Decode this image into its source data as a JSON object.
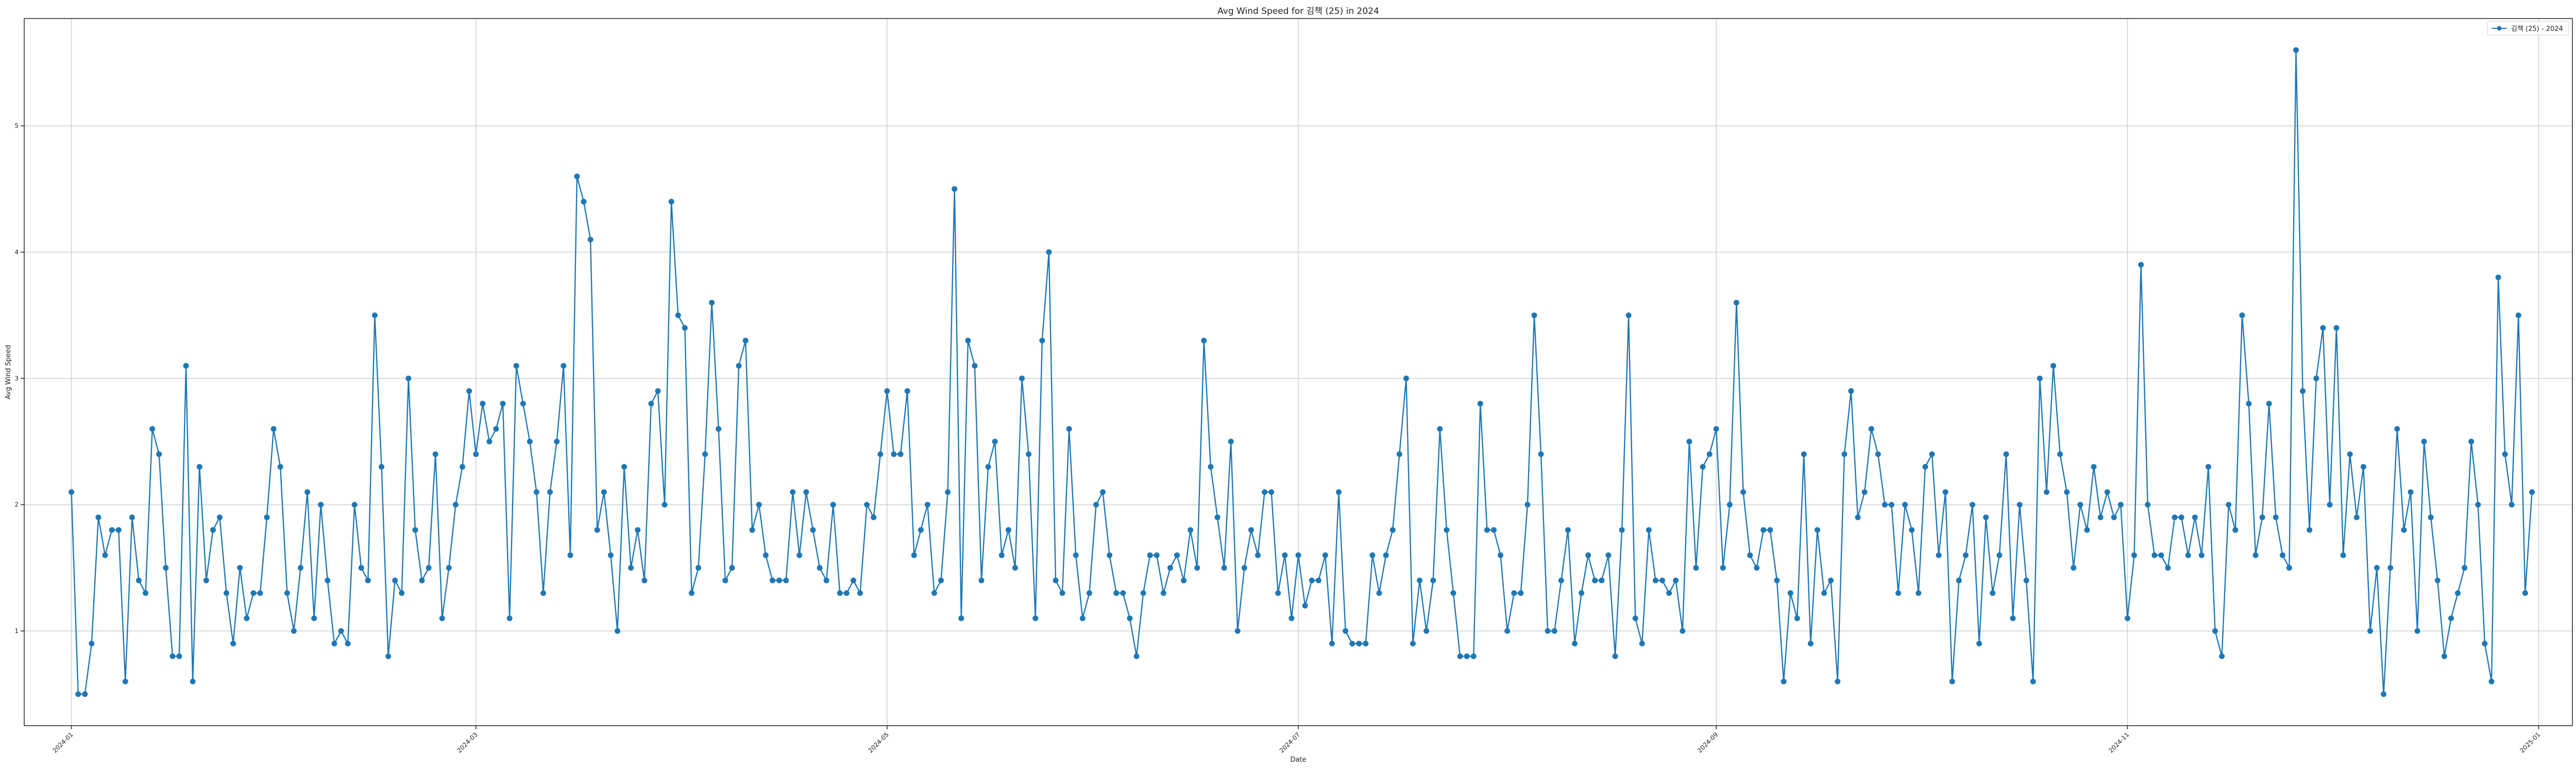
{
  "chart_data": {
    "type": "line",
    "title": "Avg Wind Speed for 김책 (25) in 2024",
    "xlabel": "Date",
    "ylabel": "Avg Wind Speed",
    "grid": true,
    "legend_position": "top-right",
    "color": "#1f77b4",
    "xlim": [
      "2023-12-25",
      "2025-01-06"
    ],
    "ylim": [
      0.25,
      5.85
    ],
    "x_ticks": [
      "2024-01",
      "2024-03",
      "2024-05",
      "2024-07",
      "2024-09",
      "2024-11",
      "2025-01"
    ],
    "y_ticks": [
      1,
      2,
      3,
      4,
      5
    ],
    "series": [
      {
        "name": "김책 (25) - 2024",
        "start_date": "2024-01-01",
        "step_days": 1,
        "values": [
          2.1,
          0.5,
          0.5,
          0.9,
          1.9,
          1.6,
          1.8,
          1.8,
          0.6,
          1.9,
          1.4,
          1.3,
          2.6,
          2.4,
          1.5,
          0.8,
          0.8,
          3.1,
          0.6,
          2.3,
          1.4,
          1.8,
          1.9,
          1.3,
          0.9,
          1.5,
          1.1,
          1.3,
          1.3,
          1.9,
          2.6,
          2.3,
          1.3,
          1.0,
          1.5,
          2.1,
          1.1,
          2.0,
          1.4,
          0.9,
          1.0,
          0.9,
          2.0,
          1.5,
          1.4,
          3.5,
          2.3,
          0.8,
          1.4,
          1.3,
          3.0,
          1.8,
          1.4,
          1.5,
          2.4,
          1.1,
          1.5,
          2.0,
          2.3,
          2.9,
          2.4,
          2.8,
          2.5,
          2.6,
          2.8,
          1.1,
          3.1,
          2.8,
          2.5,
          2.1,
          1.3,
          2.1,
          2.5,
          3.1,
          1.6,
          4.6,
          4.4,
          4.1,
          1.8,
          2.1,
          1.6,
          1.0,
          2.3,
          1.5,
          1.8,
          1.4,
          2.8,
          2.9,
          2.0,
          4.4,
          3.5,
          3.4,
          1.3,
          1.5,
          2.4,
          3.6,
          2.6,
          1.4,
          1.5,
          3.1,
          3.3,
          1.8,
          2.0,
          1.6,
          1.4,
          1.4,
          1.4,
          2.1,
          1.6,
          2.1,
          1.8,
          1.5,
          1.4,
          2.0,
          1.3,
          1.3,
          1.4,
          1.3,
          2.0,
          1.9,
          2.4,
          2.9,
          2.4,
          2.4,
          2.9,
          1.6,
          1.8,
          2.0,
          1.3,
          1.4,
          2.1,
          4.5,
          1.1,
          3.3,
          3.1,
          1.4,
          2.3,
          2.5,
          1.6,
          1.8,
          1.5,
          3.0,
          2.4,
          1.1,
          3.3,
          4.0,
          1.4,
          1.3,
          2.6,
          1.6,
          1.1,
          1.3,
          2.0,
          2.1,
          1.6,
          1.3,
          1.3,
          1.1,
          0.8,
          1.3,
          1.6,
          1.6,
          1.3,
          1.5,
          1.6,
          1.4,
          1.8,
          1.5,
          3.3,
          2.3,
          1.9,
          1.5,
          2.5,
          1.0,
          1.5,
          1.8,
          1.6,
          2.1,
          2.1,
          1.3,
          1.6,
          1.1,
          1.6,
          1.2,
          1.4,
          1.4,
          1.6,
          0.9,
          2.1,
          1.0,
          0.9,
          0.9,
          0.9,
          1.6,
          1.3,
          1.6,
          1.8,
          2.4,
          3.0,
          0.9,
          1.4,
          1.0,
          1.4,
          2.6,
          1.8,
          1.3,
          0.8,
          0.8,
          0.8,
          2.8,
          1.8,
          1.8,
          1.6,
          1.0,
          1.3,
          1.3,
          2.0,
          3.5,
          2.4,
          1.0,
          1.0,
          1.4,
          1.8,
          0.9,
          1.3,
          1.6,
          1.4,
          1.4,
          1.6,
          0.8,
          1.8,
          3.5,
          1.1,
          0.9,
          1.8,
          1.4,
          1.4,
          1.3,
          1.4,
          1.0,
          2.5,
          1.5,
          2.3,
          2.4,
          2.6,
          1.5,
          2.0,
          3.6,
          2.1,
          1.6,
          1.5,
          1.8,
          1.8,
          1.4,
          0.6,
          1.3,
          1.1,
          2.4,
          0.9,
          1.8,
          1.3,
          1.4,
          0.6,
          2.4,
          2.9,
          1.9,
          2.1,
          2.6,
          2.4,
          2.0,
          2.0,
          1.3,
          2.0,
          1.8,
          1.3,
          2.3,
          2.4,
          1.6,
          2.1,
          0.6,
          1.4,
          1.6,
          2.0,
          0.9,
          1.9,
          1.3,
          1.6,
          2.4,
          1.1,
          2.0,
          1.4,
          0.6,
          3.0,
          2.1,
          3.1,
          2.4,
          2.1,
          1.5,
          2.0,
          1.8,
          2.3,
          1.9,
          2.1,
          1.9,
          2.0,
          1.1,
          1.6,
          3.9,
          2.0,
          1.6,
          1.6,
          1.5,
          1.9,
          1.9,
          1.6,
          1.9,
          1.6,
          2.3,
          1.0,
          0.8,
          2.0,
          1.8,
          3.5,
          2.8,
          1.6,
          1.9,
          2.8,
          1.9,
          1.6,
          1.5,
          5.6,
          2.9,
          1.8,
          3.0,
          3.4,
          2.0,
          3.4,
          1.6,
          2.4,
          1.9,
          2.3,
          1.0,
          1.5,
          0.5,
          1.5,
          2.6,
          1.8,
          2.1,
          1.0,
          2.5,
          1.9,
          1.4,
          0.8,
          1.1,
          1.3,
          1.5,
          2.5,
          2.0,
          0.9,
          0.6,
          3.8,
          2.4,
          2.0,
          3.5,
          1.3,
          2.1
        ]
      }
    ]
  }
}
